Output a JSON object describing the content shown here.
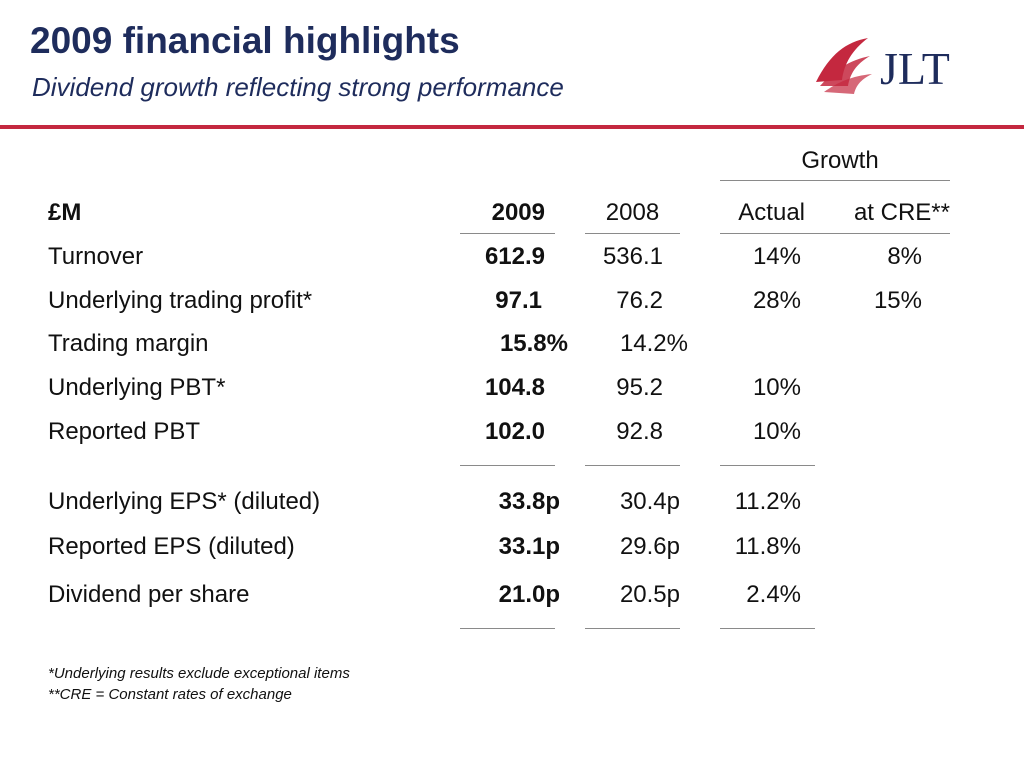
{
  "header": {
    "title": "2009 financial highlights",
    "subtitle": "Dividend growth reflecting strong performance",
    "accent_color": "#c4283f",
    "title_color": "#1e2c5c"
  },
  "logo": {
    "text": "JLT",
    "icon": "jlt-sail-logo"
  },
  "table": {
    "group_header": "Growth",
    "columns": {
      "label": "£M",
      "y2009": "2009",
      "y2008": "2008",
      "actual": "Actual",
      "cre": "at CRE**"
    },
    "rows": [
      {
        "label": "Turnover",
        "y2009": "612.9",
        "y2008": "536.1",
        "actual": "14%",
        "cre": "8%"
      },
      {
        "label": "Underlying trading profit*",
        "y2009": "97.1",
        "y2008": "76.2",
        "actual": "28%",
        "cre": "15%"
      },
      {
        "label": "Trading margin",
        "y2009": "15.8%",
        "y2008": "14.2%",
        "actual": "",
        "cre": ""
      },
      {
        "label": "Underlying PBT*",
        "y2009": "104.8",
        "y2008": "95.2",
        "actual": "10%",
        "cre": ""
      },
      {
        "label": "Reported PBT",
        "y2009": "102.0",
        "y2008": "92.8",
        "actual": "10%",
        "cre": ""
      },
      {
        "label": "Underlying EPS* (diluted)",
        "y2009": "33.8p",
        "y2008": "30.4p",
        "actual": "11.2%",
        "cre": ""
      },
      {
        "label": "Reported EPS (diluted)",
        "y2009": "33.1p",
        "y2008": "29.6p",
        "actual": "11.8%",
        "cre": ""
      },
      {
        "label": "Dividend per share",
        "y2009": "21.0p",
        "y2008": "20.5p",
        "actual": "2.4%",
        "cre": ""
      }
    ]
  },
  "footnotes": [
    "*Underlying results exclude exceptional items",
    "**CRE = Constant rates of exchange"
  ]
}
